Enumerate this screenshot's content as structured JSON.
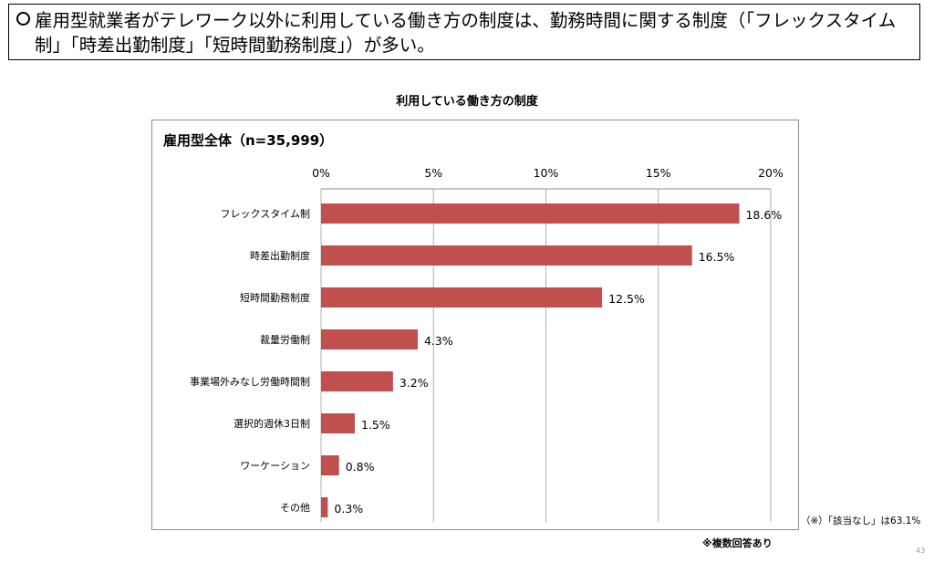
{
  "headline": "雇用型就業者がテレワーク以外に利用している働き方の制度は、勤務時間に関する制度（「フレックスタイム制」「時差出勤制度」「短時間勤務制度」）が多い。",
  "chart_title": "利用している働き方の制度",
  "panel_title": "雇用型全体（n=35,999）",
  "note_right": "（※）「該当なし」は63.1%",
  "footnote": "※複数回答あり",
  "page_number": "43",
  "chart_data": {
    "type": "bar",
    "orientation": "horizontal",
    "title": "利用している働き方の制度",
    "subtitle": "雇用型全体（n=35,999）",
    "categories": [
      "フレックスタイム制",
      "時差出勤制度",
      "短時間勤務制度",
      "裁量労働制",
      "事業場外みなし労働時間制",
      "選択的週休3日制",
      "ワーケーション",
      "その他"
    ],
    "values": [
      18.6,
      16.5,
      12.5,
      4.3,
      3.2,
      1.5,
      0.8,
      0.3
    ],
    "value_labels": [
      "18.6%",
      "16.5%",
      "12.5%",
      "4.3%",
      "3.2%",
      "1.5%",
      "0.8%",
      "0.3%"
    ],
    "xlim": [
      0,
      20
    ],
    "ticks": [
      0,
      5,
      10,
      15,
      20
    ],
    "tick_labels": [
      "0%",
      "5%",
      "10%",
      "15%",
      "20%"
    ],
    "axis_position": "top",
    "grid": true,
    "bar_color": "#c0504d",
    "grid_color": "#b0b0b0"
  }
}
